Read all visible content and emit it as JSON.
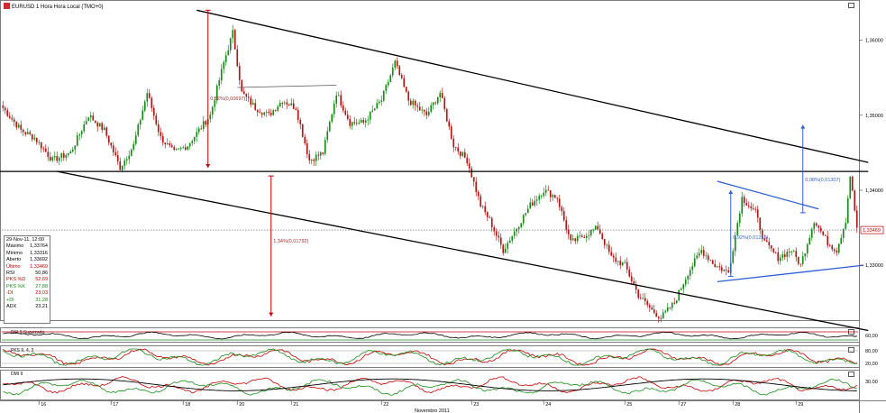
{
  "window": {
    "title": "EURUSD 1 Hora Hora Local (TMO+0)"
  },
  "info_box": {
    "date": "29-Nov-11, 12:00",
    "rows": [
      {
        "label": "Máximo",
        "value": "1,33764",
        "color": "#000000"
      },
      {
        "label": "Mínimo",
        "value": "1,33316",
        "color": "#000000"
      },
      {
        "label": "Aberto",
        "value": "1,33692",
        "color": "#000000"
      },
      {
        "label": "Último",
        "value": "1,33469",
        "color": "#c00000"
      },
      {
        "label": "RSI",
        "value": "50,86",
        "color": "#000000"
      },
      {
        "label": "PKS %D",
        "value": "52,69",
        "color": "#c00000"
      },
      {
        "label": "PKS %K",
        "value": "27,88",
        "color": "#1a8a1a"
      },
      {
        "label": "-DI",
        "value": "23,03",
        "color": "#c00000"
      },
      {
        "label": "+DI",
        "value": "31,28",
        "color": "#1a8a1a"
      },
      {
        "label": "ADX",
        "value": "23,21",
        "color": "#000000"
      }
    ]
  },
  "indicator_labels": {
    "rsi": "RSI 9 Suavizado",
    "stoch": "PKS 9, 4, 3",
    "dmi": "DMI 9"
  },
  "annotations": {
    "left_peak": "0,52%(0,00697)",
    "drop": "1,34%(0,01792)",
    "flag_pole": "0,92%(0,01216)",
    "target": "0,98%(0,01307)"
  },
  "chart_data": [
    {
      "type": "candlestick",
      "title": "EURUSD 1 Hora Hora Local (TMO+0)",
      "xlabel": "Novembro 2011",
      "x_tick_labels": [
        "16",
        "17",
        "18",
        "20",
        "21",
        "22",
        "23",
        "24",
        "25",
        "27",
        "28",
        "29"
      ],
      "y_tick_labels": [
        "1,36000",
        "1,35000",
        "1,34000",
        "1,33000"
      ],
      "ylim": [
        1.3228,
        1.365
      ],
      "last_price_label": "1,33469",
      "last_price": 1.33469,
      "grid": false,
      "colors": {
        "up": "#1a8a1a",
        "down": "#b01818",
        "trendlines": "#000000",
        "pattern": "#2f5fd0",
        "measure": "#c00000"
      },
      "keypoints": [
        [
          0,
          1.351
        ],
        [
          8,
          1.348
        ],
        [
          14,
          1.347
        ],
        [
          22,
          1.344
        ],
        [
          30,
          1.345
        ],
        [
          38,
          1.35
        ],
        [
          45,
          1.348
        ],
        [
          52,
          1.343
        ],
        [
          58,
          1.346
        ],
        [
          64,
          1.353
        ],
        [
          70,
          1.347
        ],
        [
          76,
          1.345
        ],
        [
          82,
          1.346
        ],
        [
          92,
          1.35
        ],
        [
          98,
          1.357
        ],
        [
          102,
          1.361
        ],
        [
          106,
          1.353
        ],
        [
          112,
          1.351
        ],
        [
          118,
          1.35
        ],
        [
          124,
          1.352
        ],
        [
          130,
          1.351
        ],
        [
          136,
          1.344
        ],
        [
          142,
          1.345
        ],
        [
          148,
          1.353
        ],
        [
          154,
          1.349
        ],
        [
          160,
          1.349
        ],
        [
          168,
          1.352
        ],
        [
          174,
          1.357
        ],
        [
          180,
          1.352
        ],
        [
          188,
          1.35
        ],
        [
          194,
          1.353
        ],
        [
          200,
          1.346
        ],
        [
          206,
          1.344
        ],
        [
          212,
          1.338
        ],
        [
          216,
          1.336
        ],
        [
          222,
          1.332
        ],
        [
          228,
          1.335
        ],
        [
          234,
          1.338
        ],
        [
          240,
          1.34
        ],
        [
          246,
          1.339
        ],
        [
          252,
          1.333
        ],
        [
          258,
          1.334
        ],
        [
          264,
          1.335
        ],
        [
          270,
          1.331
        ],
        [
          276,
          1.33
        ],
        [
          282,
          1.326
        ],
        [
          288,
          1.324
        ],
        [
          292,
          1.323
        ],
        [
          298,
          1.325
        ],
        [
          304,
          1.329
        ],
        [
          310,
          1.332
        ],
        [
          316,
          1.33
        ],
        [
          322,
          1.329
        ],
        [
          328,
          1.339
        ],
        [
          334,
          1.337
        ],
        [
          338,
          1.333
        ],
        [
          344,
          1.331
        ],
        [
          350,
          1.332
        ],
        [
          354,
          1.33
        ],
        [
          360,
          1.336
        ],
        [
          366,
          1.333
        ],
        [
          370,
          1.332
        ],
        [
          374,
          1.336
        ],
        [
          376,
          1.342
        ],
        [
          379,
          1.335
        ]
      ],
      "trendlines": [
        {
          "name": "upper-channel",
          "from": [
            86,
            1.364
          ],
          "to": [
            384,
            1.3437
          ]
        },
        {
          "name": "horizontal-support",
          "from": [
            -4,
            1.3425
          ],
          "to": [
            384,
            1.3425
          ]
        },
        {
          "name": "lower-channel",
          "from": [
            24,
            1.3425
          ],
          "to": [
            384,
            1.3213
          ]
        }
      ],
      "pattern_lines": [
        {
          "name": "pennant-top",
          "from": [
            317,
            1.3412
          ],
          "to": [
            362,
            1.3375
          ]
        },
        {
          "name": "pennant-bottom",
          "from": [
            317,
            1.3278
          ],
          "to": [
            382,
            1.33
          ]
        }
      ]
    },
    {
      "type": "line",
      "title": "RSI 9 Suavizado",
      "y_tick_labels": [
        "60,00"
      ],
      "reference_lines": [
        70,
        30
      ]
    },
    {
      "type": "line",
      "title": "PKS 9, 4, 3",
      "y_tick_labels": [
        "80,00",
        "20,00"
      ],
      "series": [
        {
          "name": "%D",
          "color": "#c00000"
        },
        {
          "name": "%K",
          "color": "#1a8a1a"
        }
      ]
    },
    {
      "type": "line",
      "title": "DMI 9",
      "y_tick_labels": [
        "30,00"
      ],
      "series": [
        {
          "name": "-DI",
          "color": "#c00000"
        },
        {
          "name": "+DI",
          "color": "#1a8a1a"
        },
        {
          "name": "ADX",
          "color": "#000000"
        }
      ]
    }
  ]
}
